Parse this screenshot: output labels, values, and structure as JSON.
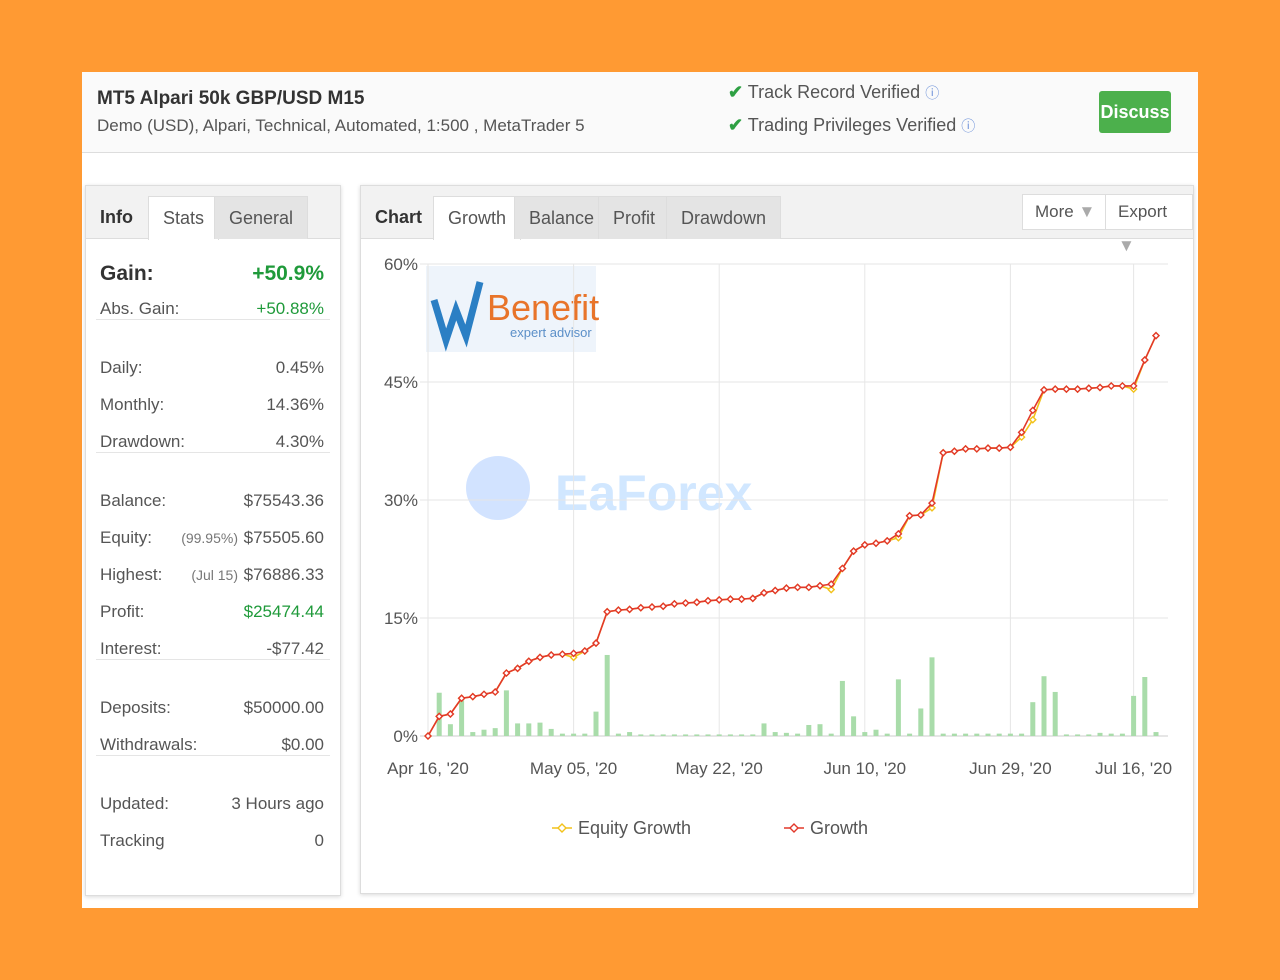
{
  "header": {
    "title": "MT5 Alpari 50k GBP/USD M15",
    "subtitle": "Demo (USD), Alpari, Technical, Automated, 1:500 , MetaTrader 5",
    "verifications": [
      "Track Record Verified",
      "Trading Privileges Verified"
    ],
    "discuss": "Discuss"
  },
  "left_tabs": [
    "Info",
    "Stats",
    "General"
  ],
  "stats_groups": [
    [
      {
        "label": "Gain:",
        "value": "+50.9%",
        "color": "#1f9a3a"
      },
      {
        "label": "Abs. Gain:",
        "value": "+50.88%",
        "color": "#1f9a3a"
      }
    ],
    [
      {
        "label": "Daily:",
        "value": "0.45%"
      },
      {
        "label": "Monthly:",
        "value": "14.36%"
      },
      {
        "label": "Drawdown:",
        "value": "4.30%"
      }
    ],
    [
      {
        "label": "Balance:",
        "value": "$75543.36"
      },
      {
        "label": "Equity:",
        "note": "(99.95%)",
        "value": "$75505.60"
      },
      {
        "label": "Highest:",
        "note": "(Jul 15)",
        "value": "$76886.33"
      },
      {
        "label": "Profit:",
        "value": "$25474.44",
        "color": "#1f9a3a"
      },
      {
        "label": "Interest:",
        "value": "-$77.42"
      }
    ],
    [
      {
        "label": "Deposits:",
        "value": "$50000.00"
      },
      {
        "label": "Withdrawals:",
        "value": "$0.00"
      }
    ],
    [
      {
        "label": "Updated:",
        "value": "3 Hours ago"
      },
      {
        "label": "Tracking",
        "value": "0"
      }
    ]
  ],
  "chart_tabs": [
    "Chart",
    "Growth",
    "Balance",
    "Profit",
    "Drawdown"
  ],
  "chart_menus": [
    "More",
    "Export"
  ],
  "watermarks": {
    "logo_title": "Benefit",
    "logo_subtitle": "expert advisor",
    "brand": "EaForex"
  },
  "chart_data": {
    "type": "line",
    "categories": [
      "Apr 16, '20",
      null,
      null,
      null,
      null,
      null,
      null,
      null,
      null,
      null,
      null,
      null,
      null,
      "May 05, '20",
      null,
      null,
      null,
      null,
      null,
      null,
      null,
      null,
      null,
      null,
      null,
      null,
      "May 22, '20",
      null,
      null,
      null,
      null,
      null,
      null,
      null,
      null,
      null,
      null,
      null,
      null,
      "Jun 10, '20",
      null,
      null,
      null,
      null,
      null,
      null,
      null,
      null,
      null,
      null,
      null,
      null,
      "Jun 29, '20",
      null,
      null,
      null,
      null,
      null,
      null,
      null,
      null,
      null,
      null,
      "Jul 16, '20",
      null,
      null
    ],
    "series": [
      {
        "name": "Equity Growth",
        "color": "#f2c21b",
        "values": [
          0,
          2.5,
          2.8,
          4.8,
          5.0,
          5.3,
          5.6,
          8.0,
          8.6,
          9.5,
          10.0,
          10.3,
          10.4,
          10.0,
          10.8,
          11.8,
          15.8,
          16.0,
          16.1,
          16.3,
          16.4,
          16.5,
          16.8,
          16.9,
          17.0,
          17.2,
          17.3,
          17.4,
          17.4,
          17.5,
          18.2,
          18.5,
          18.8,
          18.9,
          18.9,
          19.1,
          18.6,
          21.3,
          23.5,
          24.3,
          24.5,
          24.8,
          25.2,
          28.0,
          28.1,
          29.0,
          36.0,
          36.2,
          36.5,
          36.5,
          36.6,
          36.6,
          36.7,
          38.0,
          40.2,
          44.0,
          44.1,
          44.1,
          44.1,
          44.2,
          44.3,
          44.5,
          44.5,
          44.1,
          47.8,
          50.9
        ]
      },
      {
        "name": "Growth",
        "color": "#e2382a",
        "values": [
          0,
          2.5,
          2.8,
          4.8,
          5.0,
          5.3,
          5.6,
          8.0,
          8.6,
          9.5,
          10.0,
          10.3,
          10.4,
          10.5,
          10.8,
          11.8,
          15.8,
          16.0,
          16.1,
          16.3,
          16.4,
          16.5,
          16.8,
          16.9,
          17.0,
          17.2,
          17.3,
          17.4,
          17.4,
          17.5,
          18.2,
          18.5,
          18.8,
          18.9,
          18.9,
          19.1,
          19.3,
          21.3,
          23.5,
          24.3,
          24.5,
          24.8,
          25.7,
          28.0,
          28.1,
          29.6,
          36.0,
          36.2,
          36.5,
          36.5,
          36.6,
          36.6,
          36.7,
          38.6,
          41.4,
          44.0,
          44.1,
          44.1,
          44.1,
          44.2,
          44.3,
          44.5,
          44.5,
          44.5,
          47.8,
          50.9
        ]
      }
    ],
    "bars": {
      "color": "#a9dcaa",
      "values": [
        0,
        5.5,
        1.5,
        4.5,
        0.5,
        0.8,
        1.0,
        5.8,
        1.6,
        1.6,
        1.7,
        0.9,
        0.3,
        0.3,
        0.3,
        3.1,
        10.3,
        0.3,
        0.5,
        0.2,
        0.2,
        0.2,
        0.2,
        0.2,
        0.2,
        0.2,
        0.2,
        0.2,
        0.2,
        0.2,
        1.6,
        0.5,
        0.4,
        0.3,
        1.4,
        1.5,
        0.3,
        7.0,
        2.5,
        0.5,
        0.8,
        0.3,
        7.2,
        0.3,
        3.5,
        10.0,
        0.3,
        0.3,
        0.3,
        0.3,
        0.3,
        0.3,
        0.3,
        0.3,
        4.3,
        7.6,
        5.6,
        0.2,
        0.2,
        0.2,
        0.4,
        0.3,
        0.3,
        5.1,
        7.5,
        0.5
      ]
    },
    "ylim": [
      0,
      60
    ],
    "yticks": [
      {
        "value": 0,
        "label": "0%"
      },
      {
        "value": 15,
        "label": "15%"
      },
      {
        "value": 30,
        "label": "30%"
      },
      {
        "value": 45,
        "label": "45%"
      },
      {
        "value": 60,
        "label": "60%"
      }
    ],
    "grid": true
  }
}
